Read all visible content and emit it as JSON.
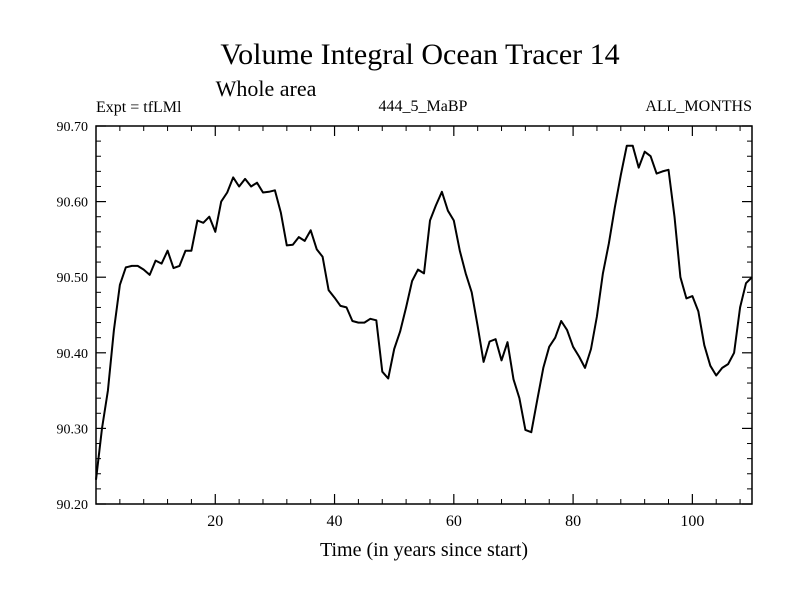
{
  "chart_data": {
    "type": "line",
    "title": "Volume Integral Ocean Tracer 14",
    "subtitle": "Whole area",
    "header_left": "Expt = tfLMl",
    "header_center": "444_5_MaBP",
    "header_right": "ALL_MONTHS",
    "xlabel": "Time (in years since start)",
    "ylabel": "",
    "xlim": [
      0,
      110
    ],
    "ylim": [
      90.2,
      90.7
    ],
    "x_ticks": [
      20,
      40,
      60,
      80,
      100
    ],
    "y_ticks": [
      "90.20",
      "90.30",
      "90.40",
      "90.50",
      "90.60",
      "90.70"
    ],
    "grid": false,
    "line_color": "#000000",
    "series": [
      {
        "x": [
          0,
          1,
          2,
          3,
          4,
          5,
          6,
          7,
          8,
          9,
          10,
          11,
          12,
          13,
          14,
          15,
          16,
          17,
          18,
          19,
          20,
          21,
          22,
          23,
          24,
          25,
          26,
          27,
          28,
          29,
          30,
          31,
          32,
          33,
          34,
          35,
          36,
          37,
          38,
          39,
          40,
          41,
          42,
          43,
          44,
          45,
          46,
          47,
          48,
          49,
          50,
          51,
          52,
          53,
          54,
          55,
          56,
          57,
          58,
          59,
          60,
          61,
          62,
          63,
          64,
          65,
          66,
          67,
          68,
          69,
          70,
          71,
          72,
          73,
          74,
          75,
          76,
          77,
          78,
          79,
          80,
          81,
          82,
          83,
          84,
          85,
          86,
          87,
          88,
          89,
          90,
          91,
          92,
          93,
          94,
          95,
          96,
          97,
          98,
          99,
          100,
          101,
          102,
          103,
          104,
          105,
          106,
          107,
          108,
          109,
          110
        ],
        "values": [
          90.232,
          90.3,
          90.35,
          90.43,
          90.49,
          90.513,
          90.515,
          90.515,
          90.51,
          90.503,
          90.522,
          90.518,
          90.535,
          90.512,
          90.515,
          90.535,
          90.535,
          90.575,
          90.572,
          90.58,
          90.56,
          90.6,
          90.612,
          90.632,
          90.62,
          90.63,
          90.62,
          90.625,
          90.612,
          90.613,
          90.615,
          90.585,
          90.542,
          90.543,
          90.553,
          90.548,
          90.562,
          90.537,
          90.527,
          90.483,
          90.473,
          90.462,
          90.46,
          90.442,
          90.44,
          90.44,
          90.445,
          90.443,
          90.375,
          90.366,
          90.405,
          90.428,
          90.46,
          90.495,
          90.51,
          90.505,
          90.575,
          90.595,
          90.613,
          90.588,
          90.575,
          90.535,
          90.505,
          90.48,
          90.435,
          90.388,
          90.415,
          90.418,
          90.39,
          90.414,
          90.365,
          90.34,
          90.298,
          90.295,
          90.338,
          90.38,
          90.408,
          90.42,
          90.442,
          90.43,
          90.408,
          90.395,
          90.38,
          90.405,
          90.448,
          90.505,
          90.545,
          90.592,
          90.635,
          90.674,
          90.674,
          90.645,
          90.666,
          90.66,
          90.637,
          90.64,
          90.642,
          90.58,
          90.5,
          90.472,
          90.475,
          90.455,
          90.41,
          90.383,
          90.37,
          90.38,
          90.385,
          90.4,
          90.46,
          90.492,
          90.5
        ]
      }
    ]
  }
}
